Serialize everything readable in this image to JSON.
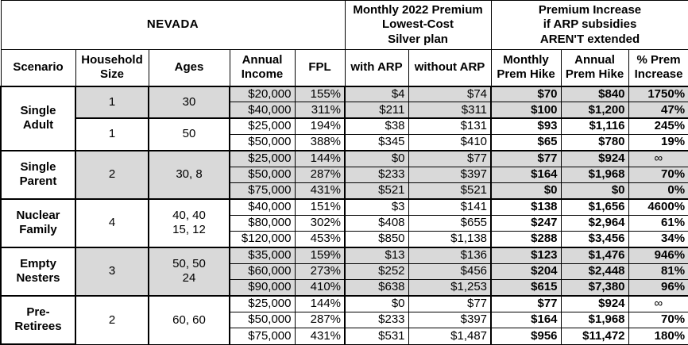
{
  "table": {
    "title": "NEVADA",
    "span_headers": {
      "premium": "Monthly 2022 Premium\nLowest-Cost\nSilver plan",
      "increase": "Premium Increase\nif ARP subsidies\nAREN'T extended"
    },
    "col_headers": [
      "Scenario",
      "Household\nSize",
      "Ages",
      "Annual\nIncome",
      "FPL",
      "with ARP",
      "without ARP",
      "Monthly\nPrem Hike",
      "Annual\nPrem Hike",
      "% Prem\nIncrease"
    ],
    "shade_color": "#d9d9d9",
    "groups": [
      {
        "scenario": "Single\nAdult",
        "subgroups": [
          {
            "household_size": "1",
            "ages": "30",
            "shaded": true,
            "rows": [
              [
                "$20,000",
                "155%",
                "$4",
                "$74",
                "$70",
                "$840",
                "1750%"
              ],
              [
                "$40,000",
                "311%",
                "$211",
                "$311",
                "$100",
                "$1,200",
                "47%"
              ]
            ]
          },
          {
            "household_size": "1",
            "ages": "50",
            "shaded": false,
            "rows": [
              [
                "$25,000",
                "194%",
                "$38",
                "$131",
                "$93",
                "$1,116",
                "245%"
              ],
              [
                "$50,000",
                "388%",
                "$345",
                "$410",
                "$65",
                "$780",
                "19%"
              ]
            ]
          }
        ]
      },
      {
        "scenario": "Single\nParent",
        "subgroups": [
          {
            "household_size": "2",
            "ages": "30, 8",
            "shaded": true,
            "rows": [
              [
                "$25,000",
                "144%",
                "$0",
                "$77",
                "$77",
                "$924",
                "∞"
              ],
              [
                "$50,000",
                "287%",
                "$233",
                "$397",
                "$164",
                "$1,968",
                "70%"
              ],
              [
                "$75,000",
                "431%",
                "$521",
                "$521",
                "$0",
                "$0",
                "0%"
              ]
            ]
          }
        ]
      },
      {
        "scenario": "Nuclear\nFamily",
        "subgroups": [
          {
            "household_size": "4",
            "ages": "40, 40\n15, 12",
            "shaded": false,
            "rows": [
              [
                "$40,000",
                "151%",
                "$3",
                "$141",
                "$138",
                "$1,656",
                "4600%"
              ],
              [
                "$80,000",
                "302%",
                "$408",
                "$655",
                "$247",
                "$2,964",
                "61%"
              ],
              [
                "$120,000",
                "453%",
                "$850",
                "$1,138",
                "$288",
                "$3,456",
                "34%"
              ]
            ]
          }
        ]
      },
      {
        "scenario": "Empty\nNesters",
        "subgroups": [
          {
            "household_size": "3",
            "ages": "50, 50\n24",
            "shaded": true,
            "rows": [
              [
                "$35,000",
                "159%",
                "$13",
                "$136",
                "$123",
                "$1,476",
                "946%"
              ],
              [
                "$60,000",
                "273%",
                "$252",
                "$456",
                "$204",
                "$2,448",
                "81%"
              ],
              [
                "$90,000",
                "410%",
                "$638",
                "$1,253",
                "$615",
                "$7,380",
                "96%"
              ]
            ]
          }
        ]
      },
      {
        "scenario": "Pre-\nRetirees",
        "subgroups": [
          {
            "household_size": "2",
            "ages": "60, 60",
            "shaded": false,
            "rows": [
              [
                "$25,000",
                "144%",
                "$0",
                "$77",
                "$77",
                "$924",
                "∞"
              ],
              [
                "$50,000",
                "287%",
                "$233",
                "$397",
                "$164",
                "$1,968",
                "70%"
              ],
              [
                "$75,000",
                "431%",
                "$531",
                "$1,487",
                "$956",
                "$11,472",
                "180%"
              ]
            ]
          }
        ]
      }
    ]
  },
  "chart_data": {
    "type": "table",
    "title": "NEVADA",
    "column_groups": [
      "Monthly 2022 Premium Lowest-Cost Silver plan",
      "Premium Increase if ARP subsidies AREN'T extended"
    ],
    "columns": [
      "Scenario",
      "Household Size",
      "Ages",
      "Annual Income",
      "FPL",
      "with ARP",
      "without ARP",
      "Monthly Prem Hike",
      "Annual Prem Hike",
      "% Prem Increase"
    ],
    "rows": [
      [
        "Single Adult",
        "1",
        "30",
        "$20,000",
        "155%",
        "$4",
        "$74",
        "$70",
        "$840",
        "1750%"
      ],
      [
        "Single Adult",
        "1",
        "30",
        "$40,000",
        "311%",
        "$211",
        "$311",
        "$100",
        "$1,200",
        "47%"
      ],
      [
        "Single Adult",
        "1",
        "50",
        "$25,000",
        "194%",
        "$38",
        "$131",
        "$93",
        "$1,116",
        "245%"
      ],
      [
        "Single Adult",
        "1",
        "50",
        "$50,000",
        "388%",
        "$345",
        "$410",
        "$65",
        "$780",
        "19%"
      ],
      [
        "Single Parent",
        "2",
        "30, 8",
        "$25,000",
        "144%",
        "$0",
        "$77",
        "$77",
        "$924",
        "∞"
      ],
      [
        "Single Parent",
        "2",
        "30, 8",
        "$50,000",
        "287%",
        "$233",
        "$397",
        "$164",
        "$1,968",
        "70%"
      ],
      [
        "Single Parent",
        "2",
        "30, 8",
        "$75,000",
        "431%",
        "$521",
        "$521",
        "$0",
        "$0",
        "0%"
      ],
      [
        "Nuclear Family",
        "4",
        "40, 40, 15, 12",
        "$40,000",
        "151%",
        "$3",
        "$141",
        "$138",
        "$1,656",
        "4600%"
      ],
      [
        "Nuclear Family",
        "4",
        "40, 40, 15, 12",
        "$80,000",
        "302%",
        "$408",
        "$655",
        "$247",
        "$2,964",
        "61%"
      ],
      [
        "Nuclear Family",
        "4",
        "40, 40, 15, 12",
        "$120,000",
        "453%",
        "$850",
        "$1,138",
        "$288",
        "$3,456",
        "34%"
      ],
      [
        "Empty Nesters",
        "3",
        "50, 50, 24",
        "$35,000",
        "159%",
        "$13",
        "$136",
        "$123",
        "$1,476",
        "946%"
      ],
      [
        "Empty Nesters",
        "3",
        "50, 50, 24",
        "$60,000",
        "273%",
        "$252",
        "$456",
        "$204",
        "$2,448",
        "81%"
      ],
      [
        "Empty Nesters",
        "3",
        "50, 50, 24",
        "$90,000",
        "410%",
        "$638",
        "$1,253",
        "$615",
        "$7,380",
        "96%"
      ],
      [
        "Pre-Retirees",
        "2",
        "60, 60",
        "$25,000",
        "144%",
        "$0",
        "$77",
        "$77",
        "$924",
        "∞"
      ],
      [
        "Pre-Retirees",
        "2",
        "60, 60",
        "$50,000",
        "287%",
        "$233",
        "$397",
        "$164",
        "$1,968",
        "70%"
      ],
      [
        "Pre-Retirees",
        "2",
        "60, 60",
        "$75,000",
        "431%",
        "$531",
        "$1,487",
        "$956",
        "$11,472",
        "180%"
      ]
    ]
  }
}
